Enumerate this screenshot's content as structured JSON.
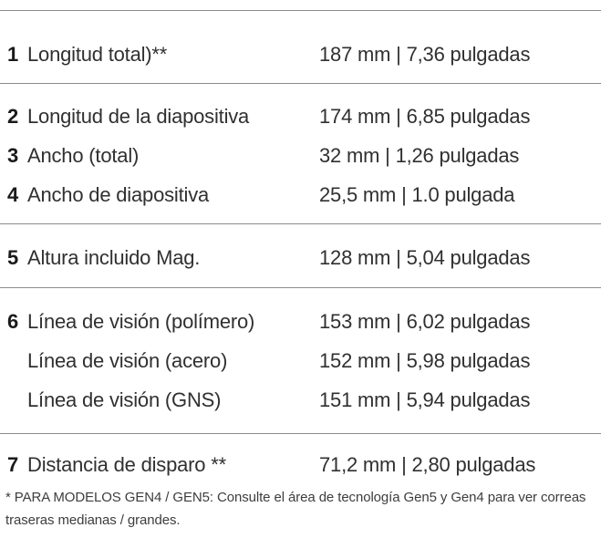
{
  "colors": {
    "background": "#ffffff",
    "separator": "#8c8c8c",
    "text": "#303030",
    "text_bold": "#1a1a1a",
    "footnote_text": "#3d3d3d"
  },
  "specs": {
    "groups": [
      {
        "rows": [
          {
            "num": "1",
            "label": "Longitud total)**",
            "value": "187 mm | 7,36 pulgadas"
          }
        ]
      },
      {
        "rows": [
          {
            "num": "2",
            "label": "Longitud de la diapositiva",
            "value": "174 mm | 6,85 pulgadas"
          },
          {
            "num": "3",
            "label": "Ancho (total)",
            "value": "32 mm | 1,26 pulgadas"
          },
          {
            "num": "4",
            "label": "Ancho de diapositiva",
            "value": "25,5 mm | 1.0 pulgada"
          }
        ]
      },
      {
        "rows": [
          {
            "num": "5",
            "label": "Altura incluido Mag.",
            "value": "128 mm | 5,04 pulgadas"
          }
        ]
      },
      {
        "rows": [
          {
            "num": "6",
            "label": "Línea de visión (polímero)",
            "value": "153 mm | 6,02 pulgadas"
          },
          {
            "num": "",
            "label": "Línea de visión (acero)",
            "value": "152 mm | 5,98 pulgadas"
          },
          {
            "num": "",
            "label": "Línea de visión (GNS)",
            "value": "151 mm | 5,94 pulgadas"
          }
        ]
      },
      {
        "rows": [
          {
            "num": "7",
            "label": "Distancia de disparo **",
            "value": "71,2 mm | 2,80 pulgadas"
          }
        ]
      }
    ],
    "footnote": "* PARA MODELOS GEN4 / GEN5: Consulte el área de tecnología Gen5 y Gen4 para ver correas traseras medianas / grandes."
  }
}
